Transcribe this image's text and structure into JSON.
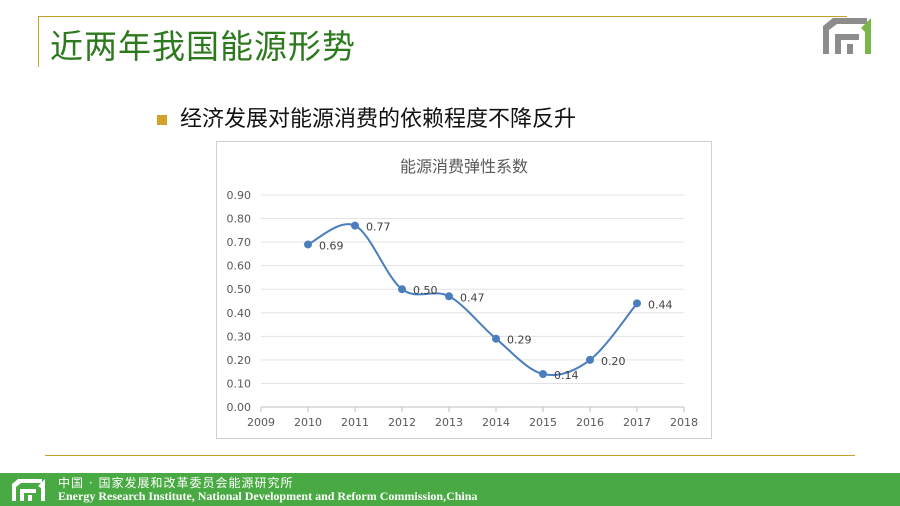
{
  "page": {
    "title": "近两年我国能源形势",
    "bullet": "经济发展对能源消费的依赖程度不降反升"
  },
  "colors": {
    "accent_gold": "#c8a02a",
    "title_green": "#2d7a1e",
    "footer_green": "#49a942",
    "series_blue": "#4a7ebf"
  },
  "icons": {
    "logo": "institute-logo-icon"
  },
  "chart_data": {
    "type": "line",
    "title": "能源消费弹性系数",
    "x": [
      2010,
      2011,
      2012,
      2013,
      2014,
      2015,
      2016,
      2017
    ],
    "series": [
      {
        "values": [
          0.69,
          0.77,
          0.5,
          0.47,
          0.29,
          0.14,
          0.2,
          0.44
        ],
        "labels": [
          "0.69",
          "0.77",
          "0.50",
          "0.47",
          "0.29",
          "0.14",
          "0.20",
          "0.44"
        ]
      }
    ],
    "xlim": [
      2009,
      2018
    ],
    "ylim": [
      0,
      0.9
    ],
    "xticks": [
      "2009",
      "2010",
      "2011",
      "2012",
      "2013",
      "2014",
      "2015",
      "2016",
      "2017",
      "2018"
    ],
    "yticks": [
      "0.00",
      "0.10",
      "0.20",
      "0.30",
      "0.40",
      "0.50",
      "0.60",
      "0.70",
      "0.80",
      "0.90"
    ],
    "grid": true,
    "smooth": true,
    "xlabel": "",
    "ylabel": ""
  },
  "footer": {
    "cn": "中国 · 国家发展和改革委员会能源研究所",
    "en": "Energy Research Institute, National Development and Reform Commission,China"
  }
}
